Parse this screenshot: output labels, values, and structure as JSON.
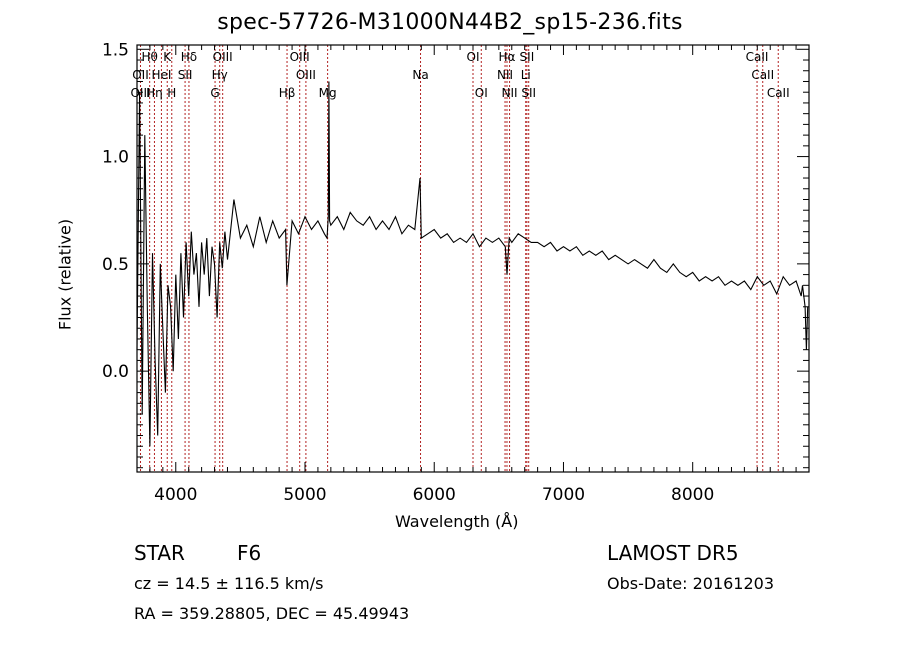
{
  "chart_data": {
    "type": "line",
    "title": "spec-57726-M31000N44B2_sp15-236.fits",
    "xlabel": "Wavelength (Å)",
    "ylabel": "Flux (relative)",
    "xlim": [
      3700,
      8900
    ],
    "ylim": [
      -0.47,
      1.52
    ],
    "x_ticks": [
      4000,
      5000,
      6000,
      7000,
      8000
    ],
    "x_tick_labels": [
      "4000",
      "5000",
      "6000",
      "7000",
      "8000"
    ],
    "y_ticks": [
      0.0,
      0.5,
      1.0,
      1.5
    ],
    "y_tick_labels": [
      "0.0",
      "0.5",
      "1.0",
      "1.5"
    ],
    "grid": false,
    "line_color": "#000000",
    "marker_line_color": "#b22222",
    "series": [
      {
        "x": [
          3700,
          3720,
          3740,
          3760,
          3780,
          3800,
          3820,
          3840,
          3860,
          3880,
          3900,
          3920,
          3940,
          3960,
          3980,
          4000,
          4020,
          4040,
          4060,
          4080,
          4100,
          4120,
          4140,
          4160,
          4180,
          4200,
          4220,
          4240,
          4260,
          4280,
          4300,
          4320,
          4340,
          4360,
          4380,
          4400,
          4450,
          4500,
          4550,
          4600,
          4650,
          4700,
          4750,
          4800,
          4850,
          4860,
          4900,
          4950,
          5000,
          5050,
          5100,
          5150,
          5170,
          5180,
          5185,
          5190,
          5200,
          5250,
          5300,
          5350,
          5400,
          5450,
          5500,
          5550,
          5600,
          5650,
          5700,
          5750,
          5800,
          5850,
          5890,
          5900,
          5950,
          6000,
          6050,
          6100,
          6150,
          6200,
          6250,
          6300,
          6350,
          6400,
          6450,
          6500,
          6550,
          6563,
          6580,
          6600,
          6650,
          6700,
          6750,
          6800,
          6850,
          6900,
          6950,
          7000,
          7050,
          7100,
          7150,
          7200,
          7250,
          7300,
          7350,
          7400,
          7450,
          7500,
          7550,
          7600,
          7650,
          7700,
          7750,
          7800,
          7850,
          7900,
          7950,
          8000,
          8050,
          8100,
          8150,
          8200,
          8250,
          8300,
          8350,
          8400,
          8450,
          8500,
          8550,
          8600,
          8650,
          8700,
          8750,
          8800,
          8840,
          8850,
          8860,
          8870,
          8880,
          8890
        ],
        "y": [
          0.1,
          1.3,
          -0.2,
          1.1,
          0.3,
          -0.35,
          0.55,
          0.05,
          -0.3,
          0.5,
          0.2,
          -0.1,
          0.4,
          0.3,
          0.0,
          0.45,
          0.15,
          0.55,
          0.25,
          0.6,
          0.35,
          0.65,
          0.45,
          0.55,
          0.3,
          0.6,
          0.45,
          0.62,
          0.35,
          0.58,
          0.5,
          0.25,
          0.6,
          0.48,
          0.65,
          0.52,
          0.8,
          0.62,
          0.68,
          0.58,
          0.72,
          0.6,
          0.7,
          0.62,
          0.66,
          0.4,
          0.7,
          0.64,
          0.72,
          0.66,
          0.7,
          0.64,
          0.62,
          0.72,
          1.35,
          0.7,
          0.68,
          0.72,
          0.66,
          0.74,
          0.7,
          0.68,
          0.72,
          0.66,
          0.7,
          0.66,
          0.72,
          0.64,
          0.68,
          0.66,
          0.9,
          0.62,
          0.64,
          0.66,
          0.62,
          0.64,
          0.6,
          0.62,
          0.6,
          0.64,
          0.58,
          0.62,
          0.6,
          0.62,
          0.58,
          0.45,
          0.62,
          0.6,
          0.64,
          0.62,
          0.6,
          0.6,
          0.58,
          0.6,
          0.56,
          0.58,
          0.56,
          0.58,
          0.54,
          0.56,
          0.54,
          0.56,
          0.52,
          0.54,
          0.52,
          0.5,
          0.52,
          0.5,
          0.48,
          0.52,
          0.48,
          0.46,
          0.5,
          0.46,
          0.44,
          0.46,
          0.42,
          0.44,
          0.42,
          0.44,
          0.4,
          0.42,
          0.4,
          0.42,
          0.38,
          0.44,
          0.4,
          0.42,
          0.36,
          0.44,
          0.4,
          0.42,
          0.35,
          0.4,
          0.35,
          0.3,
          0.1,
          0.3
        ]
      }
    ],
    "lines": [
      {
        "label": "Hθ",
        "x": 3798,
        "row": 0
      },
      {
        "label": "OII",
        "x": 3727,
        "row": 1
      },
      {
        "label": "OIII",
        "x": 3727,
        "row": 2
      },
      {
        "label": "Hη",
        "x": 3835,
        "row": 2
      },
      {
        "label": "K",
        "x": 3934,
        "row": 0
      },
      {
        "label": "HeI",
        "x": 3889,
        "row": 1
      },
      {
        "label": "H",
        "x": 3969,
        "row": 2
      },
      {
        "label": "Hδ",
        "x": 4102,
        "row": 0
      },
      {
        "label": "SII",
        "x": 4072,
        "row": 1
      },
      {
        "label": "OIII",
        "x": 4363,
        "row": 0
      },
      {
        "label": "Hγ",
        "x": 4340,
        "row": 1
      },
      {
        "label": "G",
        "x": 4304,
        "row": 2
      },
      {
        "label": "OIII",
        "x": 4959,
        "row": 0
      },
      {
        "label": "OIII",
        "x": 5007,
        "row": 1
      },
      {
        "label": "Hβ",
        "x": 4861,
        "row": 2
      },
      {
        "label": "Mg",
        "x": 5175,
        "row": 2
      },
      {
        "label": "Na",
        "x": 5894,
        "row": 1
      },
      {
        "label": "OI",
        "x": 6300,
        "row": 0
      },
      {
        "label": "OI",
        "x": 6364,
        "row": 2
      },
      {
        "label": "Hα",
        "x": 6563,
        "row": 0
      },
      {
        "label": "NII",
        "x": 6548,
        "row": 1
      },
      {
        "label": "NII",
        "x": 6583,
        "row": 2
      },
      {
        "label": "SII",
        "x": 6717,
        "row": 0
      },
      {
        "label": "Li",
        "x": 6708,
        "row": 1
      },
      {
        "label": "SII",
        "x": 6731,
        "row": 2
      },
      {
        "label": "CaII",
        "x": 8498,
        "row": 0
      },
      {
        "label": "CaII",
        "x": 8542,
        "row": 1
      },
      {
        "label": "CaII",
        "x": 8662,
        "row": 2
      }
    ]
  },
  "info": {
    "object_class": "STAR",
    "subclass": "F6",
    "survey": "LAMOST  DR5",
    "cz": "cz = 14.5 ± 116.5 km/s",
    "obs_date": "Obs-Date: 20161203",
    "coords": "RA = 359.28805, DEC =  45.49943"
  }
}
